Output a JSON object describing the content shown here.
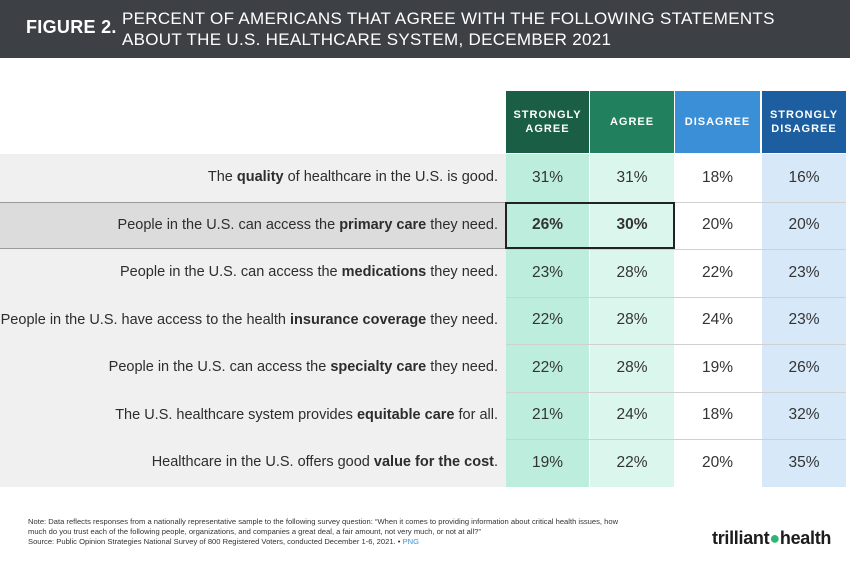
{
  "header": {
    "figure_label": "FIGURE 2.",
    "title_line1": "PERCENT OF AMERICANS THAT AGREE WITH THE FOLLOWING STATEMENTS",
    "title_line2": "ABOUT THE U.S. HEALTHCARE SYSTEM, DECEMBER 2021"
  },
  "chart_data": {
    "type": "table",
    "title": "PERCENT OF AMERICANS THAT AGREE WITH THE FOLLOWING STATEMENTS ABOUT THE U.S. HEALTHCARE SYSTEM, DECEMBER 2021",
    "columns": [
      {
        "line1": "STRONGLY",
        "line2": "AGREE",
        "head_color": "#1a5e45",
        "cell_color": "#bdeedd"
      },
      {
        "line1": "AGREE",
        "line2": "",
        "head_color": "#21815e",
        "cell_color": "#dbf6ec"
      },
      {
        "line1": "DISAGREE",
        "line2": "",
        "head_color": "#3a8fd6",
        "cell_color": "#ffffff"
      },
      {
        "line1": "STRONGLY",
        "line2": "DISAGREE",
        "head_color": "#1d5ea0",
        "cell_color": "#d7e9f8"
      }
    ],
    "rows": [
      {
        "pre": "The ",
        "bold": "quality",
        "post": " of healthcare in the U.S. is good.",
        "values": [
          "31%",
          "31%",
          "18%",
          "16%"
        ],
        "highlight": false
      },
      {
        "pre": "People in the U.S. can access the ",
        "bold": "primary care",
        "post": " they need.",
        "values": [
          "26%",
          "30%",
          "20%",
          "20%"
        ],
        "highlight": true
      },
      {
        "pre": "People in the U.S. can access the ",
        "bold": "medications",
        "post": " they need.",
        "values": [
          "23%",
          "28%",
          "22%",
          "23%"
        ],
        "highlight": false
      },
      {
        "pre": "People in the U.S. have access to the health ",
        "bold": "insurance coverage",
        "post": " they need.",
        "values": [
          "22%",
          "28%",
          "24%",
          "23%"
        ],
        "highlight": false
      },
      {
        "pre": "People in the U.S. can access the ",
        "bold": "specialty care",
        "post": " they need.",
        "values": [
          "22%",
          "28%",
          "19%",
          "26%"
        ],
        "highlight": false
      },
      {
        "pre": "The U.S. healthcare system provides ",
        "bold": "equitable care",
        "post": " for all.",
        "values": [
          "21%",
          "24%",
          "18%",
          "32%"
        ],
        "highlight": false
      },
      {
        "pre": "Healthcare in the U.S. offers good ",
        "bold": "value for the cost",
        "post": ".",
        "values": [
          "19%",
          "22%",
          "20%",
          "35%"
        ],
        "highlight": false
      }
    ]
  },
  "footer": {
    "note_line1": "Note: Data reflects responses from a nationally representative sample to the following survey question: “When it comes to providing information about critical health issues, how",
    "note_line2": "much do you trust each of the following people, organizations, and companies a great deal, a fair amount, not very much, or not at all?”",
    "source": "Source: Public Opinion Strategies National Survey of 800 Registered Voters, conducted December 1-6, 2021. •",
    "png_link": "PNG",
    "logo_left": "trilliant",
    "logo_right": "health"
  }
}
